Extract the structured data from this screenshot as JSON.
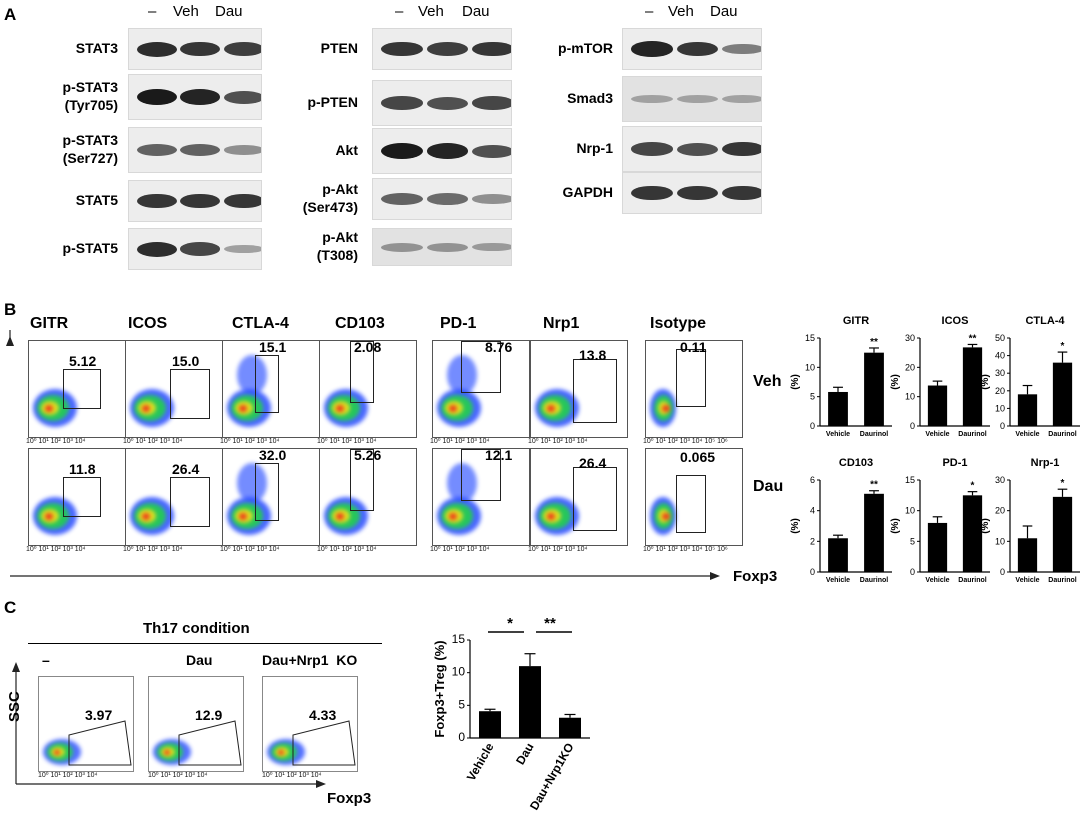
{
  "panel_a": {
    "letter": "A",
    "lane_headers": [
      "–",
      "Veh",
      "Dau"
    ],
    "blot_groups": [
      {
        "rows": [
          {
            "label": [
              "STAT3"
            ],
            "bands": [
              0.9,
              0.85,
              0.8
            ]
          },
          {
            "label": [
              "p-STAT3",
              "(Tyr705)"
            ],
            "bands": [
              1.0,
              0.95,
              0.7
            ]
          },
          {
            "label": [
              "p-STAT3",
              "(Ser727)"
            ],
            "bands": [
              0.6,
              0.6,
              0.35
            ]
          },
          {
            "label": [
              "STAT5"
            ],
            "bands": [
              0.85,
              0.85,
              0.85
            ]
          },
          {
            "label": [
              "p-STAT5"
            ],
            "bands": [
              0.9,
              0.75,
              0.25
            ]
          }
        ]
      },
      {
        "rows": [
          {
            "label": [
              "PTEN"
            ],
            "bands": [
              0.85,
              0.8,
              0.85
            ]
          },
          {
            "label": [
              "p-PTEN"
            ],
            "bands": [
              0.75,
              0.7,
              0.75
            ]
          },
          {
            "label": [
              "Akt"
            ],
            "bands": [
              1.0,
              0.95,
              0.7
            ]
          },
          {
            "label": [
              "p-Akt",
              "(Ser473)"
            ],
            "bands": [
              0.6,
              0.55,
              0.35
            ]
          },
          {
            "label": [
              "p-Akt",
              "(T308)"
            ],
            "bands": [
              0.3,
              0.3,
              0.25
            ]
          }
        ]
      },
      {
        "rows": [
          {
            "label": [
              "p-mTOR"
            ],
            "bands": [
              0.95,
              0.85,
              0.45
            ]
          },
          {
            "label": [
              "Smad3"
            ],
            "bands": [
              0.2,
              0.2,
              0.2
            ]
          },
          {
            "label": [
              "Nrp-1"
            ],
            "bands": [
              0.75,
              0.7,
              0.85
            ]
          },
          {
            "label": [
              "GAPDH"
            ],
            "bands": [
              0.85,
              0.85,
              0.85
            ]
          }
        ]
      }
    ]
  },
  "panel_b": {
    "letter": "B",
    "markers": [
      "GITR",
      "ICOS",
      "CTLA-4",
      "CD103",
      "PD-1",
      "Nrp1",
      "Isotype"
    ],
    "row_labels": [
      "Veh",
      "Dau"
    ],
    "veh_values": [
      "5.12",
      "15.0",
      "15.1",
      "2.08",
      "8.76",
      "13.8",
      "0.11"
    ],
    "dau_values": [
      "11.8",
      "26.4",
      "32.0",
      "5.26",
      "12.1",
      "26.4",
      "0.065"
    ],
    "tick_labels": "10⁰ 10¹ 10² 10³ 10⁴",
    "iso_tick_labels": "10⁰ 10¹ 10² 10³ 10⁴ 10⁵ 10⁶",
    "x_axis_label": "Foxp3"
  },
  "chart_data": [
    {
      "type": "bar",
      "title": "GITR",
      "categories": [
        "Vehicle",
        "Daurinol"
      ],
      "values": [
        5.8,
        12.5
      ],
      "errors": [
        0.8,
        0.8
      ],
      "ylabel": "(%)",
      "ylim": [
        0,
        15
      ],
      "yticks": [
        0,
        5,
        10,
        15
      ],
      "significance": "**"
    },
    {
      "type": "bar",
      "title": "ICOS",
      "categories": [
        "Vehicle",
        "Daurinol"
      ],
      "values": [
        13.8,
        26.8
      ],
      "errors": [
        1.5,
        1.0
      ],
      "ylabel": "(%)",
      "ylim": [
        0,
        30
      ],
      "yticks": [
        0,
        10,
        20,
        30
      ],
      "significance": "**"
    },
    {
      "type": "bar",
      "title": "CTLA-4",
      "categories": [
        "Vehicle",
        "Daurinol"
      ],
      "values": [
        18,
        36
      ],
      "errors": [
        5,
        6
      ],
      "ylabel": "(%)",
      "ylim": [
        0,
        50
      ],
      "yticks": [
        0,
        10,
        20,
        30,
        40,
        50
      ],
      "significance": "*"
    },
    {
      "type": "bar",
      "title": "CD103",
      "categories": [
        "Vehicle",
        "Daurinol"
      ],
      "values": [
        2.2,
        5.1
      ],
      "errors": [
        0.2,
        0.2
      ],
      "ylabel": "(%)",
      "ylim": [
        0,
        6
      ],
      "yticks": [
        0,
        2,
        4,
        6
      ],
      "significance": "**"
    },
    {
      "type": "bar",
      "title": "PD-1",
      "categories": [
        "Vehicle",
        "Daurinol"
      ],
      "values": [
        8,
        12.5
      ],
      "errors": [
        1,
        0.6
      ],
      "ylabel": "(%)",
      "ylim": [
        0,
        15
      ],
      "yticks": [
        0,
        5,
        10,
        15
      ],
      "significance": "*"
    },
    {
      "type": "bar",
      "title": "Nrp-1",
      "categories": [
        "Vehicle",
        "Daurinol"
      ],
      "values": [
        11,
        24.5
      ],
      "errors": [
        4,
        2.5
      ],
      "ylabel": "(%)",
      "ylim": [
        0,
        30
      ],
      "yticks": [
        0,
        10,
        20,
        30
      ],
      "significance": "*"
    },
    {
      "type": "bar",
      "title": "",
      "categories": [
        "Vehicle",
        "Dau",
        "Dau+Nrp1KO"
      ],
      "values": [
        4.1,
        11.0,
        3.1
      ],
      "errors": [
        0.3,
        1.9,
        0.5
      ],
      "ylabel": "Foxp3+Treg (%)",
      "ylim": [
        0,
        15
      ],
      "yticks": [
        0,
        5,
        10,
        15
      ],
      "brackets": [
        {
          "from": 0,
          "to": 1,
          "label": "*"
        },
        {
          "from": 1,
          "to": 2,
          "label": "**"
        }
      ]
    }
  ],
  "panel_c": {
    "letter": "C",
    "condition_title": "Th17 condition",
    "columns": [
      "–",
      "Dau",
      "Dau+Nrp1  KO"
    ],
    "values": [
      "3.97",
      "12.9",
      "4.33"
    ],
    "y_axis_label": "SSC",
    "x_axis_label": "Foxp3",
    "tick_labels": "10⁰ 10¹ 10² 10³ 10⁴"
  }
}
